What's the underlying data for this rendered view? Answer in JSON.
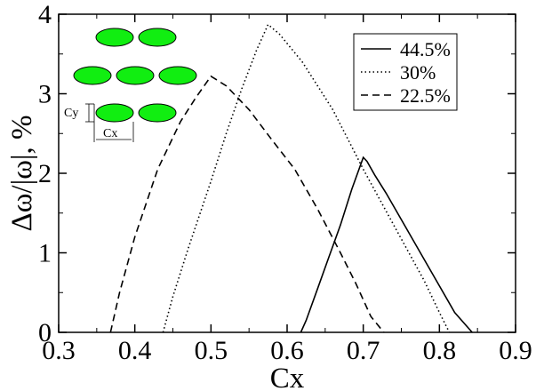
{
  "chart_data": {
    "type": "line",
    "title": "",
    "xlabel": "Cx",
    "ylabel": "Δω/|ω|, %",
    "xlim": [
      0.3,
      0.9
    ],
    "ylim": [
      0,
      4
    ],
    "xticks": [
      "0.3",
      "0.4",
      "0.5",
      "0.6",
      "0.7",
      "0.8",
      "0.9"
    ],
    "yticks": [
      "0",
      "1",
      "2",
      "3",
      "4"
    ],
    "grid": false,
    "legend_position": "top-right",
    "series": [
      {
        "name": "44.5%",
        "style": "solid",
        "color": "#000000",
        "x": [
          0.618,
          0.625,
          0.64,
          0.655,
          0.67,
          0.685,
          0.7,
          0.705,
          0.715,
          0.73,
          0.76,
          0.79,
          0.82,
          0.843
        ],
        "y": [
          0.0,
          0.15,
          0.55,
          0.95,
          1.35,
          1.8,
          2.2,
          2.15,
          1.98,
          1.75,
          1.25,
          0.75,
          0.25,
          0.0
        ]
      },
      {
        "name": "30%",
        "style": "dotted",
        "color": "#000000",
        "x": [
          0.437,
          0.45,
          0.47,
          0.5,
          0.52,
          0.54,
          0.56,
          0.575,
          0.59,
          0.62,
          0.66,
          0.7,
          0.74,
          0.78,
          0.8,
          0.813
        ],
        "y": [
          0.0,
          0.45,
          1.05,
          1.9,
          2.5,
          3.05,
          3.55,
          3.87,
          3.75,
          3.4,
          2.8,
          2.05,
          1.35,
          0.65,
          0.25,
          0.0
        ]
      },
      {
        "name": "22.5%",
        "style": "dashed",
        "color": "#000000",
        "x": [
          0.368,
          0.38,
          0.4,
          0.43,
          0.46,
          0.48,
          0.5,
          0.52,
          0.55,
          0.58,
          0.61,
          0.64,
          0.67,
          0.69,
          0.71,
          0.727
        ],
        "y": [
          0.0,
          0.5,
          1.2,
          2.05,
          2.65,
          2.95,
          3.22,
          3.1,
          2.8,
          2.42,
          2.05,
          1.55,
          1.0,
          0.62,
          0.2,
          0.0
        ]
      }
    ]
  },
  "inset": {
    "label_y": "Cy",
    "label_x": "Cx",
    "ellipse_color": "#11ee11"
  }
}
